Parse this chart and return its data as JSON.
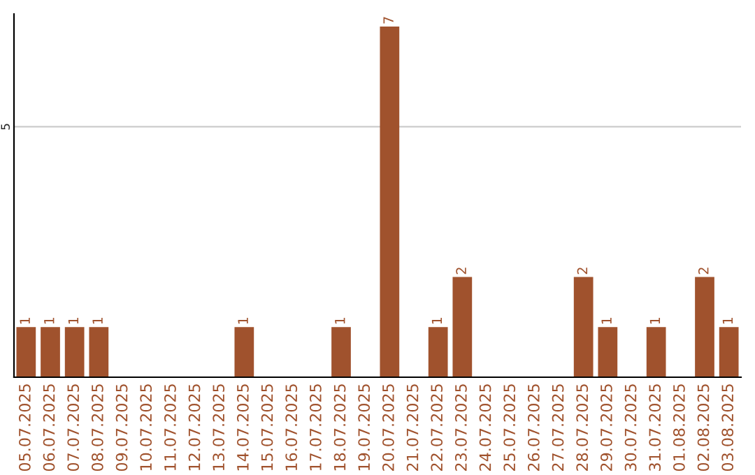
{
  "chart_data": {
    "type": "bar",
    "categories": [
      "05.07.2025",
      "06.07.2025",
      "07.07.2025",
      "08.07.2025",
      "09.07.2025",
      "10.07.2025",
      "11.07.2025",
      "12.07.2025",
      "13.07.2025",
      "14.07.2025",
      "15.07.2025",
      "16.07.2025",
      "17.07.2025",
      "18.07.2025",
      "19.07.2025",
      "20.07.2025",
      "21.07.2025",
      "22.07.2025",
      "23.07.2025",
      "24.07.2025",
      "25.07.2025",
      "26.07.2025",
      "27.07.2025",
      "28.07.2025",
      "29.07.2025",
      "30.07.2025",
      "31.07.2025",
      "01.08.2025",
      "02.08.2025",
      "03.08.2025"
    ],
    "values": [
      1,
      1,
      1,
      1,
      0,
      0,
      0,
      0,
      0,
      1,
      0,
      0,
      0,
      1,
      0,
      7,
      0,
      1,
      2,
      0,
      0,
      0,
      0,
      2,
      1,
      0,
      1,
      0,
      2,
      1
    ],
    "value_labels": [
      "1",
      "1",
      "1",
      "1",
      null,
      null,
      null,
      null,
      null,
      "1",
      null,
      null,
      null,
      "1",
      null,
      "7",
      null,
      "1",
      "2",
      null,
      null,
      null,
      null,
      "2",
      "1",
      null,
      "1",
      null,
      "2",
      "1"
    ],
    "color": "#a0522d",
    "ylim": [
      0,
      7.25
    ],
    "yticks": [
      5
    ],
    "grid": "y"
  }
}
